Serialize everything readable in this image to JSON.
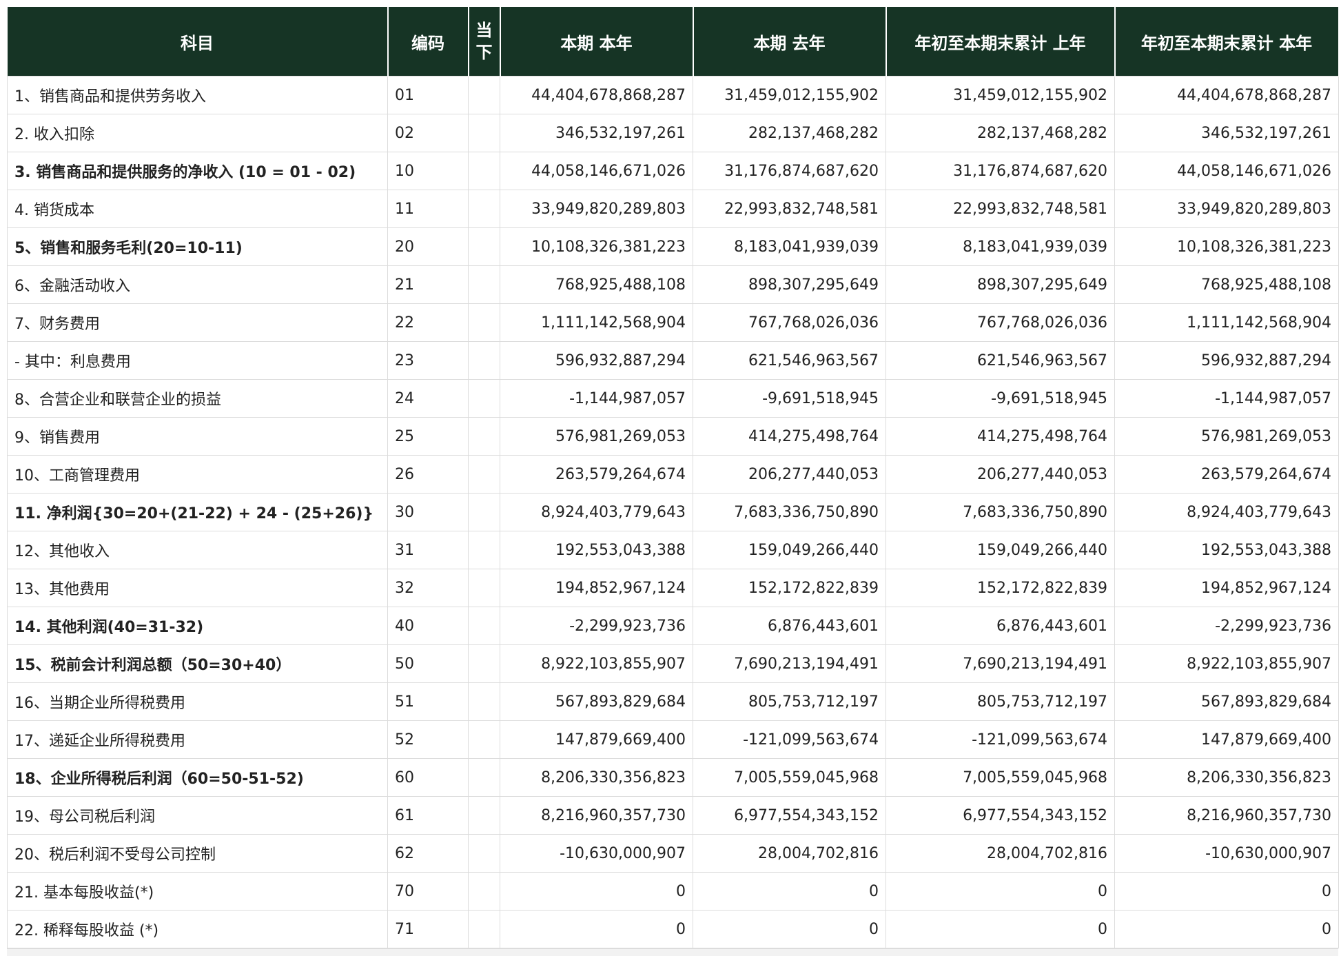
{
  "table": {
    "headers": [
      "科目",
      "编码",
      "当下",
      "本期 本年",
      "本期 去年",
      "年初至本期末累计 上年",
      "年初至本期末累计 本年"
    ],
    "rows": [
      {
        "label": "1、销售商品和提供劳务收入",
        "code": "01",
        "note": "",
        "v1": "44,404,678,868,287",
        "v2": "31,459,012,155,902",
        "v3": "31,459,012,155,902",
        "v4": "44,404,678,868,287",
        "bold": false
      },
      {
        "label": "2. 收入扣除",
        "code": "02",
        "note": "",
        "v1": "346,532,197,261",
        "v2": "282,137,468,282",
        "v3": "282,137,468,282",
        "v4": "346,532,197,261",
        "bold": false
      },
      {
        "label": "3. 销售商品和提供服务的净收入 (10 = 01 - 02)",
        "code": "10",
        "note": "",
        "v1": "44,058,146,671,026",
        "v2": "31,176,874,687,620",
        "v3": "31,176,874,687,620",
        "v4": "44,058,146,671,026",
        "bold": true
      },
      {
        "label": "4. 销货成本",
        "code": "11",
        "note": "",
        "v1": "33,949,820,289,803",
        "v2": "22,993,832,748,581",
        "v3": "22,993,832,748,581",
        "v4": "33,949,820,289,803",
        "bold": false
      },
      {
        "label": "5、销售和服务毛利(20=10-11)",
        "code": "20",
        "note": "",
        "v1": "10,108,326,381,223",
        "v2": "8,183,041,939,039",
        "v3": "8,183,041,939,039",
        "v4": "10,108,326,381,223",
        "bold": true
      },
      {
        "label": "6、金融活动收入",
        "code": "21",
        "note": "",
        "v1": "768,925,488,108",
        "v2": "898,307,295,649",
        "v3": "898,307,295,649",
        "v4": "768,925,488,108",
        "bold": false
      },
      {
        "label": "7、财务费用",
        "code": "22",
        "note": "",
        "v1": "1,111,142,568,904",
        "v2": "767,768,026,036",
        "v3": "767,768,026,036",
        "v4": "1,111,142,568,904",
        "bold": false
      },
      {
        "label": "- 其中：利息费用",
        "code": "23",
        "note": "",
        "v1": "596,932,887,294",
        "v2": "621,546,963,567",
        "v3": "621,546,963,567",
        "v4": "596,932,887,294",
        "bold": false
      },
      {
        "label": "8、合营企业和联营企业的损益",
        "code": "24",
        "note": "",
        "v1": "-1,144,987,057",
        "v2": "-9,691,518,945",
        "v3": "-9,691,518,945",
        "v4": "-1,144,987,057",
        "bold": false
      },
      {
        "label": "9、销售费用",
        "code": "25",
        "note": "",
        "v1": "576,981,269,053",
        "v2": "414,275,498,764",
        "v3": "414,275,498,764",
        "v4": "576,981,269,053",
        "bold": false
      },
      {
        "label": "10、工商管理费用",
        "code": "26",
        "note": "",
        "v1": "263,579,264,674",
        "v2": "206,277,440,053",
        "v3": "206,277,440,053",
        "v4": "263,579,264,674",
        "bold": false
      },
      {
        "label": "11. 净利润{30=20+(21-22) + 24 - (25+26)}",
        "code": "30",
        "note": "",
        "v1": "8,924,403,779,643",
        "v2": "7,683,336,750,890",
        "v3": "7,683,336,750,890",
        "v4": "8,924,403,779,643",
        "bold": true
      },
      {
        "label": "12、其他收入",
        "code": "31",
        "note": "",
        "v1": "192,553,043,388",
        "v2": "159,049,266,440",
        "v3": "159,049,266,440",
        "v4": "192,553,043,388",
        "bold": false
      },
      {
        "label": "13、其他费用",
        "code": "32",
        "note": "",
        "v1": "194,852,967,124",
        "v2": "152,172,822,839",
        "v3": "152,172,822,839",
        "v4": "194,852,967,124",
        "bold": false
      },
      {
        "label": "14. 其他利润(40=31-32)",
        "code": "40",
        "note": "",
        "v1": "-2,299,923,736",
        "v2": "6,876,443,601",
        "v3": "6,876,443,601",
        "v4": "-2,299,923,736",
        "bold": true
      },
      {
        "label": "15、税前会计利润总额（50=30+40）",
        "code": "50",
        "note": "",
        "v1": "8,922,103,855,907",
        "v2": "7,690,213,194,491",
        "v3": "7,690,213,194,491",
        "v4": "8,922,103,855,907",
        "bold": true
      },
      {
        "label": "16、当期企业所得税费用",
        "code": "51",
        "note": "",
        "v1": "567,893,829,684",
        "v2": "805,753,712,197",
        "v3": "805,753,712,197",
        "v4": "567,893,829,684",
        "bold": false
      },
      {
        "label": "17、递延企业所得税费用",
        "code": "52",
        "note": "",
        "v1": "147,879,669,400",
        "v2": "-121,099,563,674",
        "v3": "-121,099,563,674",
        "v4": "147,879,669,400",
        "bold": false
      },
      {
        "label": "18、企业所得税后利润（60=50-51-52)",
        "code": "60",
        "note": "",
        "v1": "8,206,330,356,823",
        "v2": "7,005,559,045,968",
        "v3": "7,005,559,045,968",
        "v4": "8,206,330,356,823",
        "bold": true
      },
      {
        "label": "19、母公司税后利润",
        "code": "61",
        "note": "",
        "v1": "8,216,960,357,730",
        "v2": "6,977,554,343,152",
        "v3": "6,977,554,343,152",
        "v4": "8,216,960,357,730",
        "bold": false
      },
      {
        "label": "20、税后利润不受母公司控制",
        "code": "62",
        "note": "",
        "v1": "-10,630,000,907",
        "v2": "28,004,702,816",
        "v3": "28,004,702,816",
        "v4": "-10,630,000,907",
        "bold": false
      },
      {
        "label": "21. 基本每股收益(*)",
        "code": "70",
        "note": "",
        "v1": "0",
        "v2": "0",
        "v3": "0",
        "v4": "0",
        "bold": false
      },
      {
        "label": "22. 稀释每股收益 (*)",
        "code": "71",
        "note": "",
        "v1": "0",
        "v2": "0",
        "v3": "0",
        "v4": "0",
        "bold": false
      }
    ]
  }
}
